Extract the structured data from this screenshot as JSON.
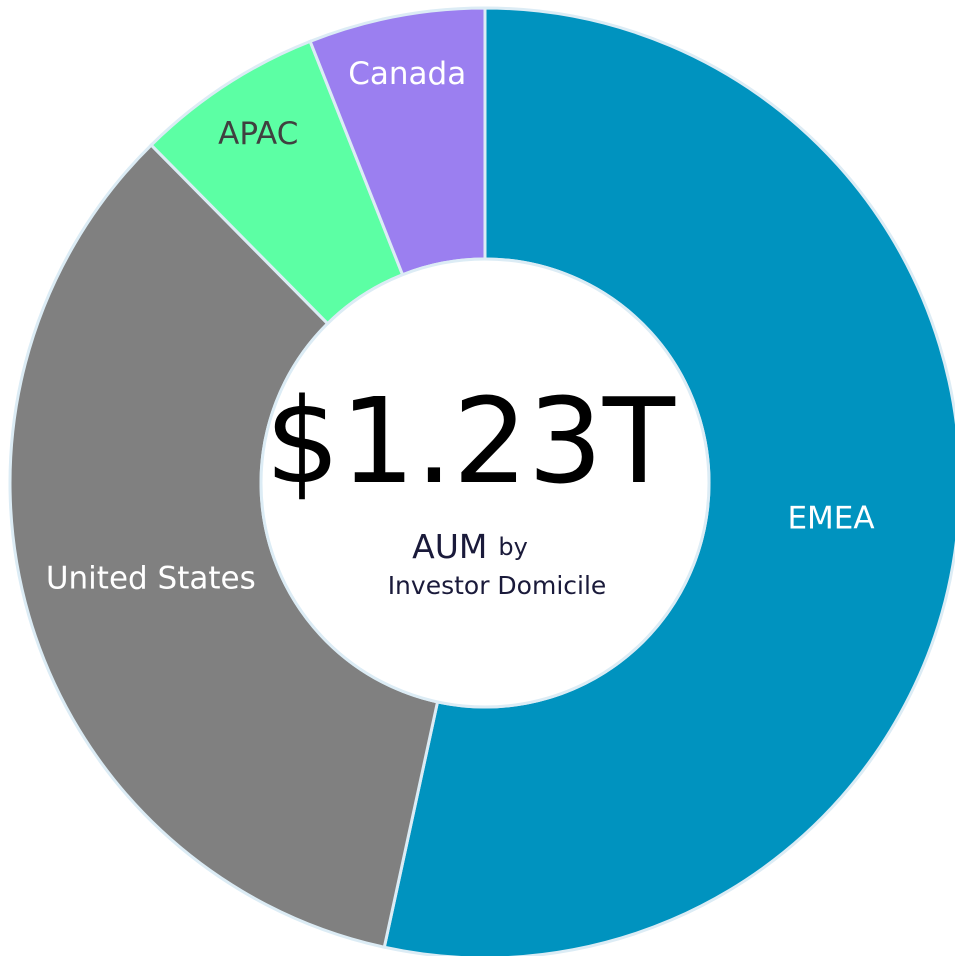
{
  "chart_data": {
    "type": "donut",
    "categories": [
      "EMEA",
      "United States",
      "APAC",
      "Canada"
    ],
    "values": [
      53.4,
      34.2,
      6.4,
      6.0
    ],
    "colors": [
      "#0093bf",
      "#808080",
      "#5cffa4",
      "#9b7ff0"
    ],
    "label_colors": [
      "#ffffff",
      "#ffffff",
      "#404040",
      "#ffffff"
    ],
    "center_value": "$1.23T",
    "center_label_main": "AUM",
    "center_label_by": "by",
    "center_label_sub": "Investor Domicile"
  }
}
